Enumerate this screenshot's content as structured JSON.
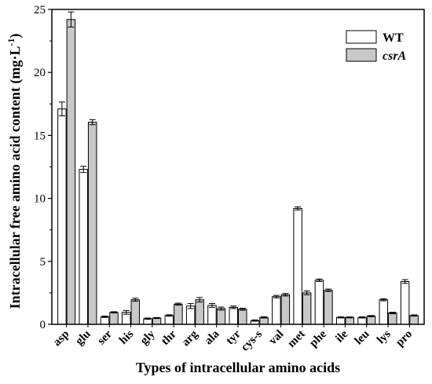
{
  "chart_data": {
    "type": "bar",
    "xlabel": "Types of intracellular amino acids",
    "ylabel": "Intracellular free amino acid content (mg·L",
    "ylabel_sup": "-1",
    "ylabel_end": ")",
    "ylim": [
      0,
      25
    ],
    "yticks": [
      "0",
      "5",
      "10",
      "15",
      "20",
      "25"
    ],
    "grid": false,
    "legend_position": "top-right",
    "categories": [
      "asp",
      "glu",
      "ser",
      "his",
      "gly",
      "thr",
      "arg",
      "ala",
      "tyr",
      "cys-s",
      "val",
      "met",
      "phe",
      "ile",
      "leu",
      "lys",
      "pro"
    ],
    "series": [
      {
        "name": "WT",
        "color": "#ffffff",
        "values": [
          17.1,
          12.3,
          0.6,
          0.95,
          0.45,
          0.7,
          1.45,
          1.5,
          1.35,
          0.3,
          2.2,
          9.2,
          3.5,
          0.55,
          0.55,
          1.95,
          3.4
        ],
        "errors": [
          0.55,
          0.25,
          0.06,
          0.15,
          0.05,
          0.06,
          0.2,
          0.15,
          0.1,
          0.05,
          0.1,
          0.12,
          0.1,
          0.05,
          0.05,
          0.08,
          0.15
        ]
      },
      {
        "name": "csrA",
        "color": "#c8c8c8",
        "values": [
          24.2,
          16.05,
          0.95,
          1.95,
          0.5,
          1.6,
          1.95,
          1.25,
          1.2,
          0.55,
          2.35,
          2.5,
          2.7,
          0.55,
          0.65,
          0.9,
          0.7
        ],
        "errors": [
          0.6,
          0.2,
          0.05,
          0.12,
          0.04,
          0.08,
          0.18,
          0.12,
          0.08,
          0.05,
          0.1,
          0.15,
          0.1,
          0.04,
          0.05,
          0.06,
          0.05
        ]
      }
    ]
  }
}
